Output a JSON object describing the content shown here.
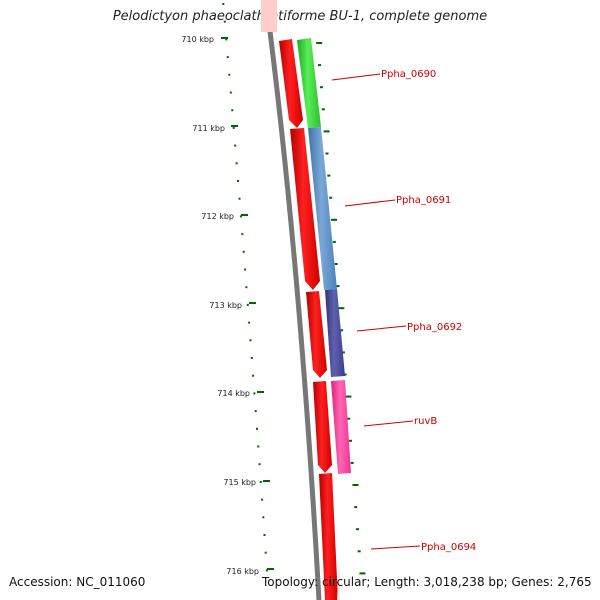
{
  "title": "Pelodictyon phaeoclathratiforme BU-1, complete genome",
  "footer": {
    "accession": "Accession: NC_011060",
    "stats": "Topology: circular; Length: 3,018,238 bp; Genes: 2,765"
  },
  "ruler": {
    "ticks": [
      "710 kbp",
      "711 kbp",
      "712 kbp",
      "713 kbp",
      "714 kbp",
      "715 kbp",
      "716 kbp"
    ],
    "color": "#006600"
  },
  "colors": {
    "backbone": "#777777",
    "forward_strand": "#ff0000",
    "label": "#cc0000"
  },
  "genes": [
    {
      "name": "Ppha_0690",
      "color": "#33cc33"
    },
    {
      "name": "Ppha_0691",
      "color": "#5b8ec4"
    },
    {
      "name": "Ppha_0692",
      "color": "#4a4a9a"
    },
    {
      "name": "ruvB",
      "color": "#ff3399"
    },
    {
      "name": "Ppha_0694",
      "color": "#ff0000"
    }
  ]
}
